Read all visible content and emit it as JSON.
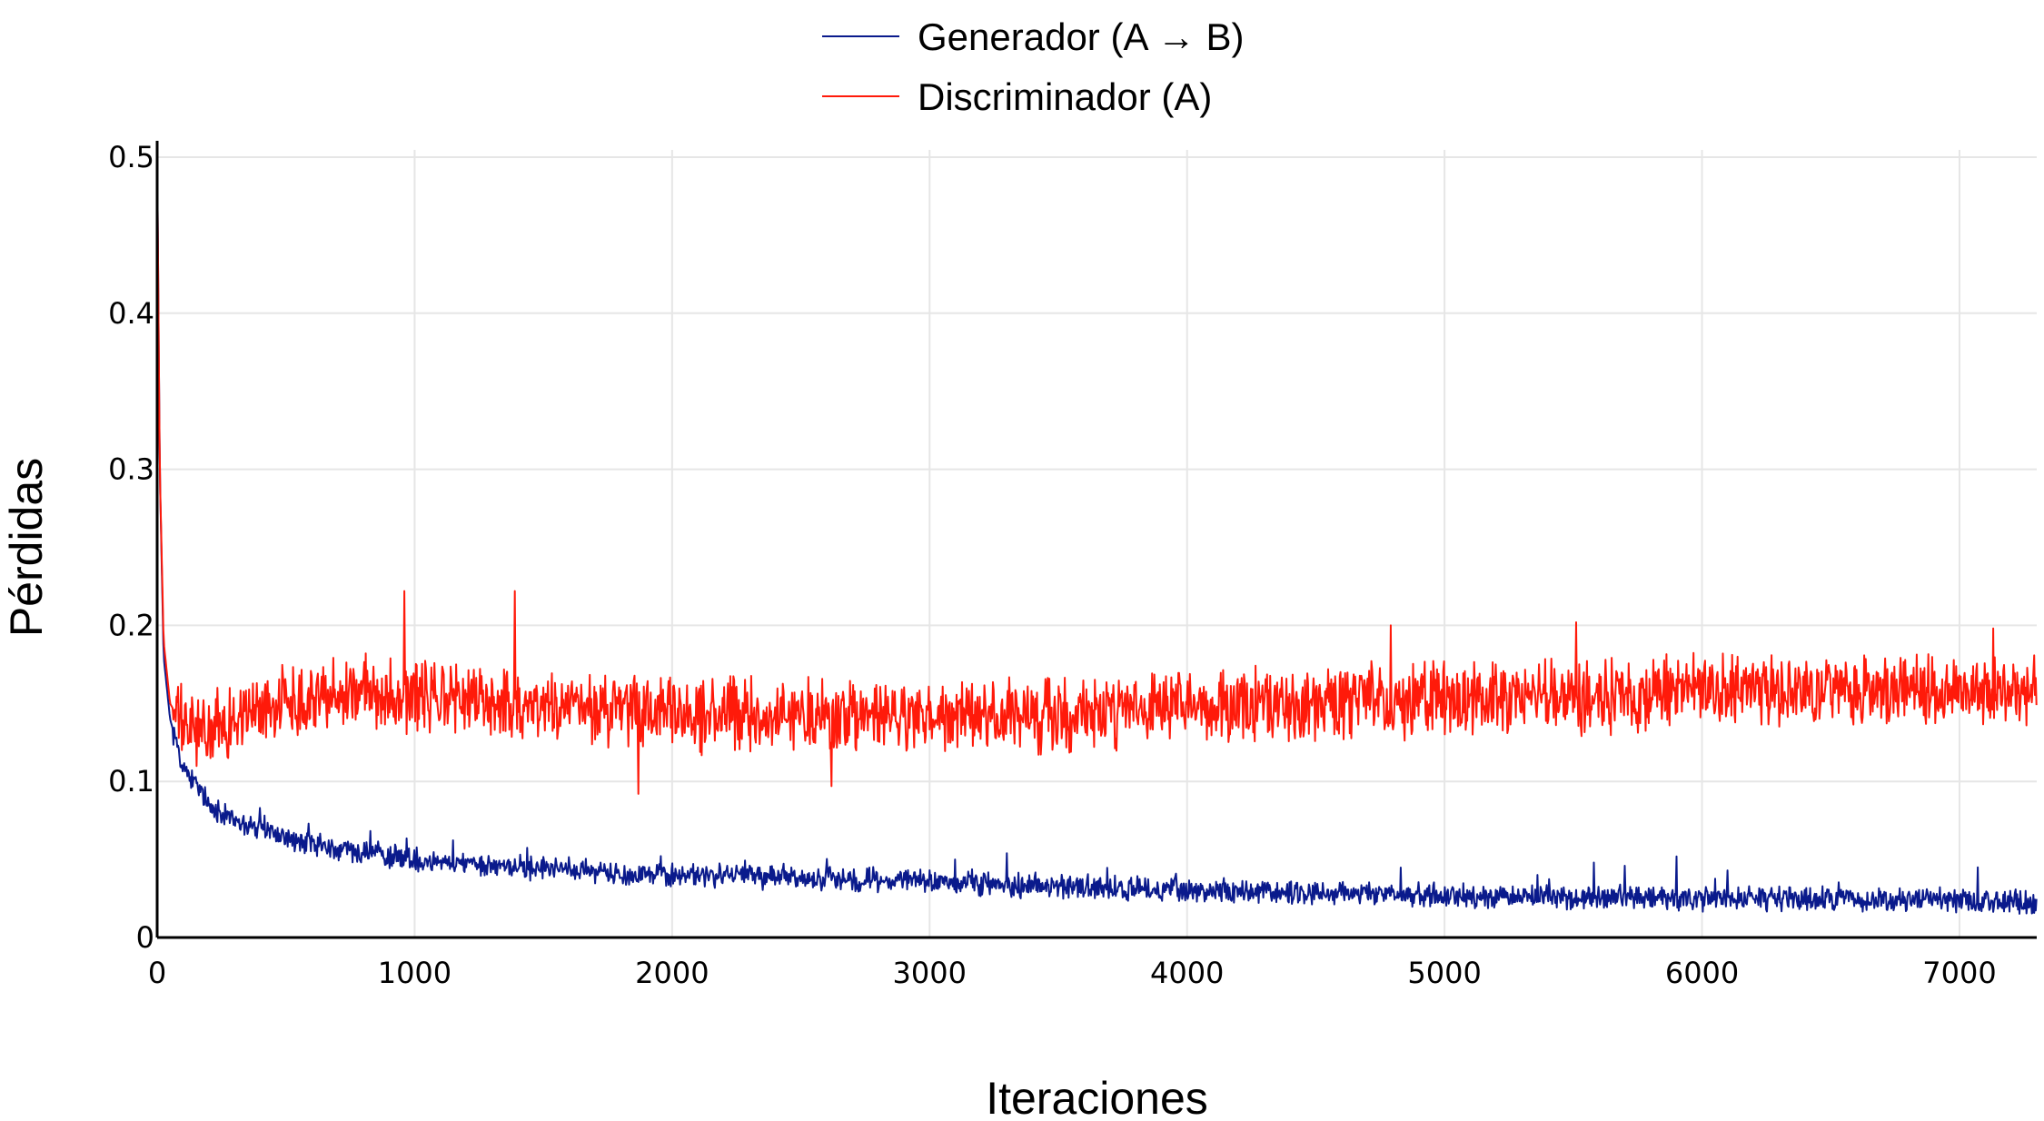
{
  "chart_data": {
    "type": "line",
    "xlabel": "Iteraciones",
    "ylabel": "Pérdidas",
    "xlim": [
      0,
      7300
    ],
    "ylim": [
      0,
      0.5
    ],
    "x_ticks": [
      0,
      1000,
      2000,
      3000,
      4000,
      5000,
      6000,
      7000
    ],
    "y_ticks": [
      0,
      0.1,
      0.2,
      0.3,
      0.4,
      0.5
    ],
    "y_tick_labels": [
      "0",
      "0.1",
      "0.2",
      "0.3",
      "0.4",
      "0.5"
    ],
    "grid": true,
    "legend_position": "top-center",
    "series": [
      {
        "name": "Generador (A → B)",
        "color": "#0a1a8c",
        "x": [
          0,
          10,
          25,
          50,
          100,
          200,
          300,
          500,
          750,
          1000,
          1500,
          2000,
          2500,
          3000,
          3500,
          4000,
          4500,
          5000,
          5500,
          6000,
          6500,
          7000,
          7300
        ],
        "y": [
          0.5,
          0.3,
          0.18,
          0.14,
          0.11,
          0.085,
          0.075,
          0.063,
          0.055,
          0.05,
          0.044,
          0.04,
          0.039,
          0.036,
          0.033,
          0.03,
          0.028,
          0.027,
          0.026,
          0.025,
          0.025,
          0.024,
          0.022
        ],
        "noise": 0.006,
        "spikes": [
          {
            "x": 3300,
            "y": 0.054
          },
          {
            "x": 5580,
            "y": 0.048
          },
          {
            "x": 5900,
            "y": 0.052
          },
          {
            "x": 5700,
            "y": 0.046
          },
          {
            "x": 6100,
            "y": 0.043
          },
          {
            "x": 7070,
            "y": 0.045
          },
          {
            "x": 400,
            "y": 0.083
          },
          {
            "x": 3100,
            "y": 0.05
          }
        ]
      },
      {
        "name": "Discriminador (A)",
        "color": "#ff1a0a",
        "x": [
          0,
          10,
          25,
          50,
          100,
          200,
          300,
          500,
          750,
          1000,
          1500,
          2000,
          2500,
          3000,
          3500,
          4000,
          4500,
          5000,
          5500,
          6000,
          6500,
          7000,
          7300
        ],
        "y": [
          0.5,
          0.3,
          0.19,
          0.15,
          0.135,
          0.13,
          0.14,
          0.152,
          0.158,
          0.155,
          0.148,
          0.143,
          0.142,
          0.14,
          0.142,
          0.146,
          0.15,
          0.153,
          0.155,
          0.158,
          0.158,
          0.159,
          0.157
        ],
        "noise": 0.018,
        "spikes": [
          {
            "x": 960,
            "y": 0.222
          },
          {
            "x": 1390,
            "y": 0.222
          },
          {
            "x": 1870,
            "y": 0.092
          },
          {
            "x": 5510,
            "y": 0.202
          },
          {
            "x": 7130,
            "y": 0.198
          },
          {
            "x": 4790,
            "y": 0.2
          },
          {
            "x": 2620,
            "y": 0.097
          }
        ]
      }
    ]
  }
}
